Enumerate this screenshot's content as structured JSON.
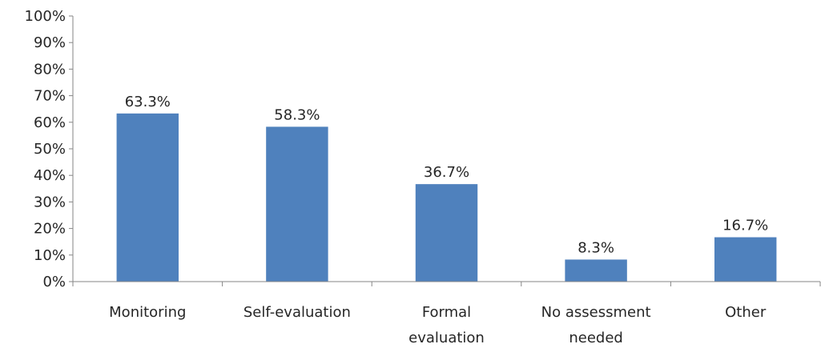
{
  "chart_data": {
    "type": "bar",
    "categories": [
      [
        "Monitoring"
      ],
      [
        "Self-evaluation"
      ],
      [
        "Formal",
        "evaluation"
      ],
      [
        "No assessment",
        "needed"
      ],
      [
        "Other"
      ]
    ],
    "values": [
      63.3,
      58.3,
      36.7,
      8.3,
      16.7
    ],
    "value_labels": [
      "63.3%",
      "58.3%",
      "36.7%",
      "8.3%",
      "16.7%"
    ],
    "ylim": [
      0,
      100
    ],
    "y_ticks": [
      0,
      10,
      20,
      30,
      40,
      50,
      60,
      70,
      80,
      90,
      100
    ],
    "y_tick_labels": [
      "0%",
      "10%",
      "20%",
      "30%",
      "40%",
      "50%",
      "60%",
      "70%",
      "80%",
      "90%",
      "100%"
    ],
    "bar_color": "#4F81BD",
    "axis_color": "#868686",
    "grid": false,
    "legend": "none",
    "title": "",
    "xlabel": "",
    "ylabel": ""
  }
}
